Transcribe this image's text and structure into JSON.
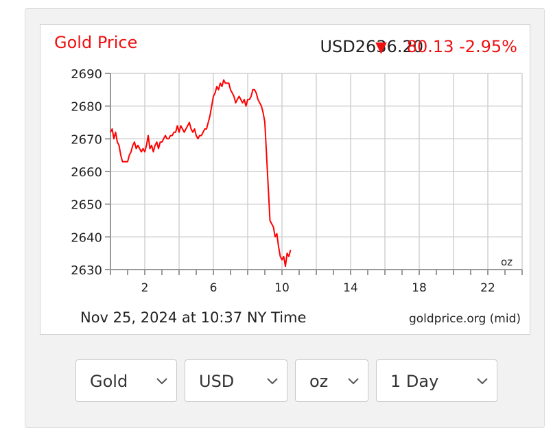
{
  "chart_data": {
    "type": "line",
    "title": "Gold Price",
    "price_label": "USD2636.20",
    "change_symbol": "▼",
    "change_label": "80.13 -2.95%",
    "date_label": "Nov 25, 2024 at 10:37 NY Time",
    "source_label": "goldprice.org (mid)",
    "unit_label": "oz",
    "xlim": [
      0,
      24
    ],
    "ylim": [
      2630,
      2690
    ],
    "x_ticks": [
      2,
      6,
      10,
      14,
      18,
      22
    ],
    "y_ticks": [
      2630,
      2640,
      2650,
      2660,
      2670,
      2680,
      2690
    ],
    "grid": true,
    "series": [
      {
        "x": [
          0,
          0.1,
          0.2,
          0.3,
          0.4,
          0.5,
          0.6,
          0.7,
          0.8,
          0.9,
          1.0,
          1.1,
          1.2,
          1.3,
          1.4,
          1.5,
          1.6,
          1.7,
          1.8,
          1.9,
          2.0,
          2.1,
          2.2,
          2.3,
          2.4,
          2.5,
          2.6,
          2.7,
          2.8,
          2.9,
          3.0,
          3.1,
          3.2,
          3.3,
          3.4,
          3.5,
          3.6,
          3.7,
          3.8,
          3.9,
          4.0,
          4.1,
          4.2,
          4.3,
          4.4,
          4.5,
          4.6,
          4.7,
          4.8,
          4.9,
          5.0,
          5.1,
          5.2,
          5.3,
          5.4,
          5.5,
          5.6,
          5.7,
          5.8,
          5.9,
          6.0,
          6.1,
          6.2,
          6.3,
          6.4,
          6.5,
          6.6,
          6.7,
          6.8,
          6.9,
          7.0,
          7.1,
          7.2,
          7.3,
          7.4,
          7.5,
          7.6,
          7.7,
          7.8,
          7.9,
          8.0,
          8.1,
          8.2,
          8.3,
          8.4,
          8.5,
          8.6,
          8.7,
          8.8,
          8.9,
          9.0,
          9.1,
          9.2,
          9.3,
          9.4,
          9.5,
          9.6,
          9.7,
          9.8,
          9.9,
          10.0,
          10.1,
          10.2,
          10.3,
          10.4,
          10.5
        ],
        "values": [
          2672,
          2673,
          2670,
          2672,
          2669,
          2668,
          2665,
          2663,
          2663,
          2663,
          2663,
          2665,
          2666,
          2668,
          2669,
          2667,
          2668,
          2667,
          2666,
          2667,
          2666,
          2668,
          2671,
          2667,
          2668,
          2666,
          2668,
          2669,
          2667,
          2669,
          2669,
          2670,
          2671,
          2670,
          2670,
          2671,
          2671,
          2672,
          2672,
          2674,
          2672,
          2674,
          2673,
          2672,
          2673,
          2674,
          2675,
          2673,
          2672,
          2673,
          2671,
          2670,
          2671,
          2671,
          2672,
          2673,
          2673,
          2675,
          2677,
          2680,
          2683,
          2684,
          2686,
          2685,
          2687,
          2686,
          2688,
          2687,
          2687,
          2687,
          2685,
          2684,
          2683,
          2681,
          2682,
          2683,
          2682,
          2681,
          2682,
          2680,
          2682,
          2682,
          2683,
          2685,
          2685,
          2684,
          2682,
          2681,
          2680,
          2678,
          2675,
          2665,
          2655,
          2645,
          2644,
          2643,
          2640,
          2641,
          2637,
          2634,
          2633,
          2634,
          2631,
          2635,
          2634,
          2636
        ]
      }
    ]
  },
  "controls": {
    "metal": "Gold",
    "currency": "USD",
    "unit": "oz",
    "period": "1 Day"
  },
  "colors": {
    "line": "#ff0000",
    "title": "#ee1111",
    "change": "#ee1111",
    "grid": "#d0d0d0",
    "text": "#222222"
  }
}
